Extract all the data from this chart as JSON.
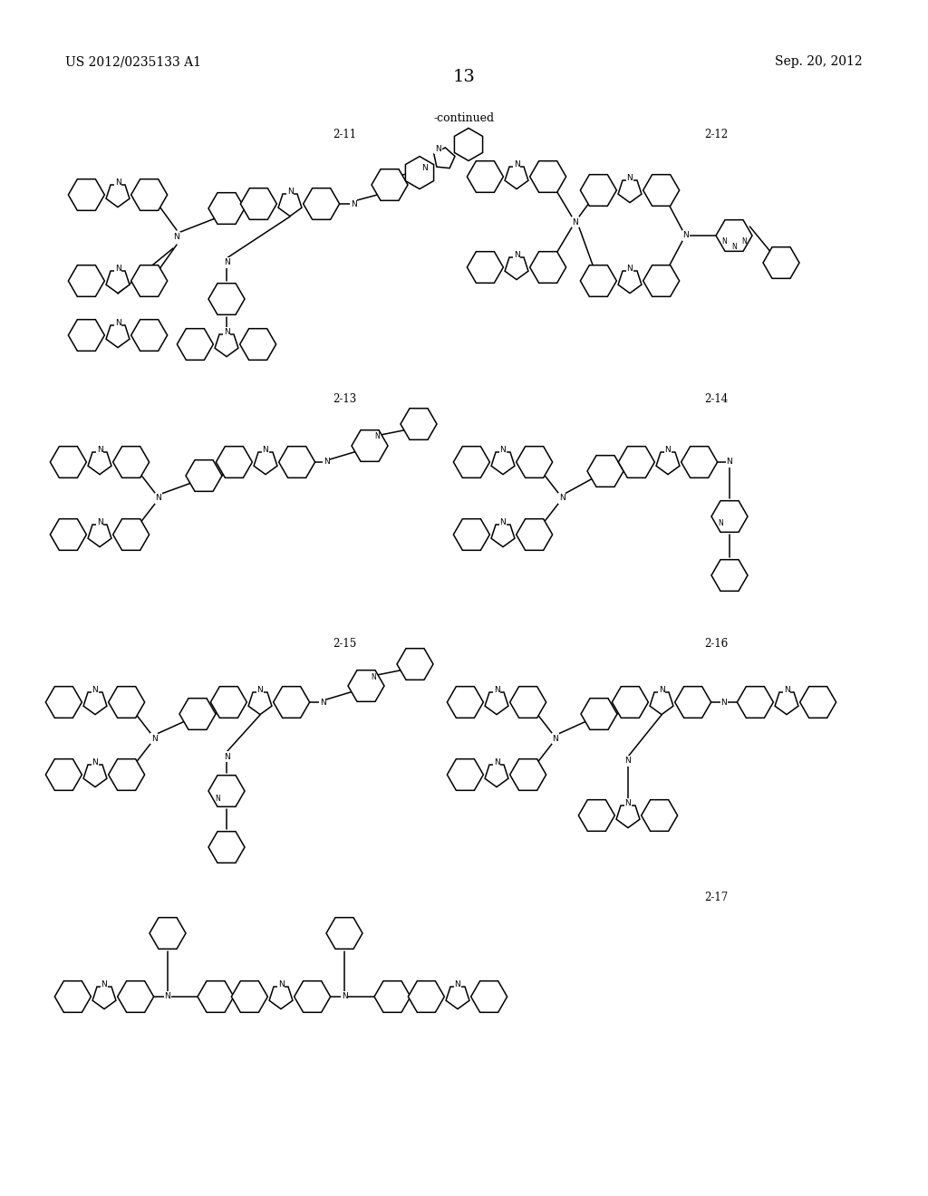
{
  "page_title": "13",
  "header_left": "US 2012/0235133 A1",
  "header_right": "Sep. 20, 2012",
  "continued_text": "-continued",
  "background_color": "#ffffff",
  "text_color": "#000000",
  "label_2_11": "2-11",
  "label_2_12": "2-12",
  "label_2_13": "2-13",
  "label_2_14": "2-14",
  "label_2_15": "2-15",
  "label_2_16": "2-16",
  "label_2_17": "2-17"
}
